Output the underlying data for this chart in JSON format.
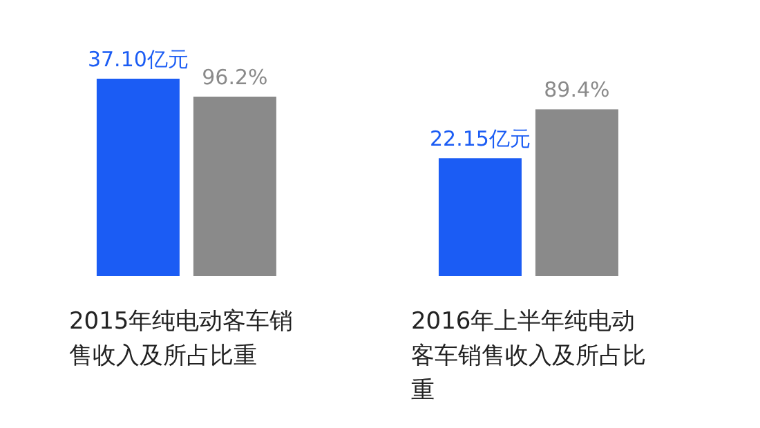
{
  "chart_data": {
    "type": "bar",
    "categories": [
      "2015年纯电动客车销售收入及所占比重",
      "2016年上半年纯电动客车销售收入及所占比重"
    ],
    "series": [
      {
        "color": "#1b5cf4",
        "values": [
          37.1,
          22.15
        ],
        "value_labels": [
          "37.10亿元",
          "22.15亿元"
        ]
      },
      {
        "color": "#8a8a8a",
        "axis": "y2",
        "values": [
          96.2,
          89.4
        ],
        "value_labels": [
          "96.2%",
          "89.4%"
        ]
      }
    ]
  }
}
